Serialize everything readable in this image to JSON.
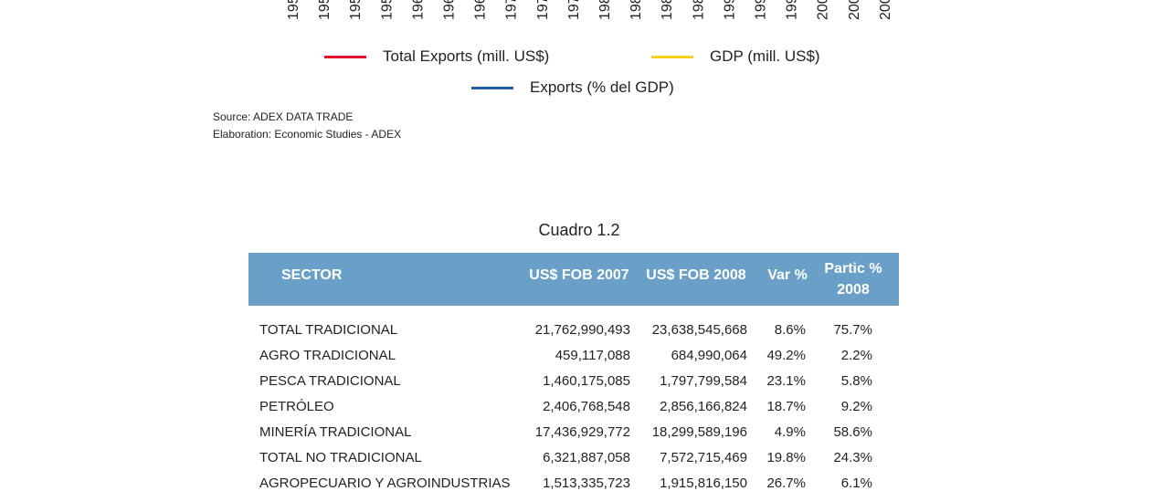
{
  "chart_axis": {
    "labels": [
      "195",
      "195",
      "195",
      "195",
      "196",
      "196",
      "196",
      "197",
      "197",
      "197",
      "198",
      "198",
      "198",
      "198",
      "199",
      "199",
      "199",
      "200",
      "200",
      "200"
    ]
  },
  "legend": [
    {
      "name": "Total Exports (mill. US$)",
      "color": "#e0102a"
    },
    {
      "name": "GDP (mill.  US$)",
      "color": "#f7d117"
    },
    {
      "name": "Exports (% del GDP)",
      "color": "#1f5fa8"
    }
  ],
  "source": [
    "Source: ADEX DATA TRADE",
    "Elaboration: Economic Studies - ADEX"
  ],
  "table": {
    "title": "Cuadro 1.2",
    "header": [
      "SECTOR",
      "US$ FOB 2007",
      "US$ FOB 2008",
      "Var %",
      "Partic % 2008"
    ],
    "rows": [
      [
        "TOTAL TRADICIONAL",
        "21,762,990,493",
        "23,638,545,668",
        "8.6%",
        "75.7%"
      ],
      [
        "AGRO TRADICIONAL",
        "459,117,088",
        "684,990,064",
        "49.2%",
        "2.2%"
      ],
      [
        "PESCA TRADICIONAL",
        "1,460,175,085",
        "1,797,799,584",
        "23.1%",
        "5.8%"
      ],
      [
        "PETRÓLEO",
        "2,406,768,548",
        "2,856,166,824",
        "18.7%",
        "9.2%"
      ],
      [
        "MINERÍA TRADICIONAL",
        "17,436,929,772",
        "18,299,589,196",
        "4.9%",
        "58.6%"
      ],
      [
        "TOTAL NO TRADICIONAL",
        "6,321,887,058",
        "7,572,715,469",
        "19.8%",
        "24.3%"
      ],
      [
        "AGROPECUARIO Y AGROINDUSTRIAS",
        "1,513,335,723",
        "1,915,816,150",
        "26.7%",
        "6.1%"
      ]
    ]
  }
}
